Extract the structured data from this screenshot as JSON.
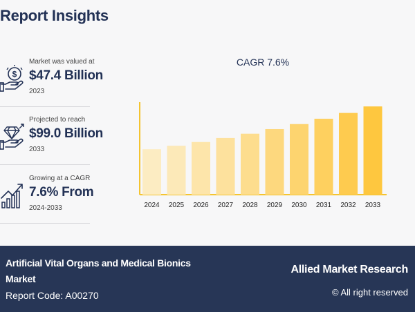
{
  "header": {
    "title": "Report Insights"
  },
  "stats": [
    {
      "label": "Market was valued at",
      "value": "$47.4 Billion",
      "year": "2023",
      "icon": "money-hand-icon"
    },
    {
      "label": "Projected to reach",
      "value": "$99.0 Billion",
      "year": "2033",
      "icon": "diamond-hand-icon"
    },
    {
      "label": "Growing at a CAGR",
      "value": "7.6% From",
      "year": "2024-2033",
      "icon": "growth-chart-icon"
    }
  ],
  "chart_data": {
    "type": "bar",
    "title": "CAGR 7.6%",
    "categories": [
      "2024",
      "2025",
      "2026",
      "2027",
      "2028",
      "2029",
      "2030",
      "2031",
      "2032",
      "2033"
    ],
    "values": [
      51.0,
      54.9,
      59.1,
      63.6,
      68.4,
      73.6,
      79.2,
      85.2,
      91.7,
      99.0
    ],
    "xlabel": "",
    "ylabel": "",
    "ylim": [
      0,
      110
    ],
    "grid": false,
    "colors": [
      "#fcecc2",
      "#fce9b8",
      "#fde5aa",
      "#fde19d",
      "#fddd8e",
      "#fdd87e",
      "#fdd46f",
      "#fed05f",
      "#fecb4f",
      "#fec73f"
    ],
    "axis_color": "#f4c430"
  },
  "footer": {
    "market": "Artificial Vital Organs and Medical Bionics Market",
    "code": "Report Code: A00270",
    "brand": "Allied Market Research",
    "rights": "© All right reserved"
  }
}
